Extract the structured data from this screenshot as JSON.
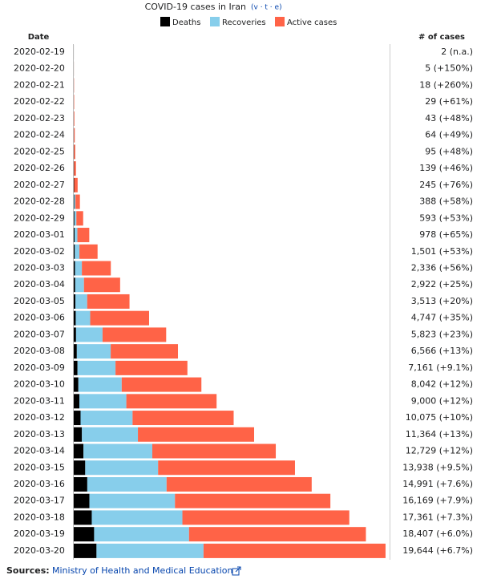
{
  "chart_data": {
    "type": "stacked-barh",
    "title": "COVID-19 cases in Iran",
    "nav_links": "(v · t · e)",
    "category_header": "Date",
    "case_header": "# of cases",
    "sources_label": "Sources:",
    "source": "Ministry of Health and Medical Education",
    "xlim": [
      0,
      20000
    ],
    "categories": [
      "2020-02-19",
      "2020-02-20",
      "2020-02-21",
      "2020-02-22",
      "2020-02-23",
      "2020-02-24",
      "2020-02-25",
      "2020-02-26",
      "2020-02-27",
      "2020-02-28",
      "2020-02-29",
      "2020-03-01",
      "2020-03-02",
      "2020-03-03",
      "2020-03-04",
      "2020-03-05",
      "2020-03-06",
      "2020-03-07",
      "2020-03-08",
      "2020-03-09",
      "2020-03-10",
      "2020-03-11",
      "2020-03-12",
      "2020-03-13",
      "2020-03-14",
      "2020-03-15",
      "2020-03-16",
      "2020-03-17",
      "2020-03-18",
      "2020-03-19",
      "2020-03-20"
    ],
    "series": [
      {
        "name": "Deaths",
        "color": "#000000",
        "values": [
          2,
          2,
          4,
          5,
          8,
          12,
          16,
          19,
          26,
          34,
          43,
          54,
          66,
          77,
          92,
          107,
          124,
          145,
          194,
          237,
          291,
          354,
          429,
          514,
          611,
          724,
          853,
          988,
          1135,
          1284,
          1433
        ]
      },
      {
        "name": "Recoveries",
        "color": "#87ceeb",
        "values": [
          0,
          0,
          0,
          0,
          0,
          0,
          0,
          0,
          0,
          73,
          123,
          175,
          291,
          435,
          552,
          739,
          913,
          1669,
          2134,
          2394,
          2731,
          2959,
          3276,
          3529,
          4339,
          4590,
          4996,
          5389,
          5710,
          5979,
          6745
        ]
      },
      {
        "name": "Active cases",
        "color": "#ff6347",
        "values": [
          0,
          3,
          14,
          24,
          35,
          52,
          79,
          120,
          219,
          281,
          427,
          749,
          1144,
          1824,
          2278,
          2667,
          3710,
          4009,
          4238,
          4530,
          5020,
          5687,
          6370,
          7321,
          7779,
          8624,
          9142,
          9792,
          10516,
          11144,
          11466
        ]
      }
    ],
    "case_labels": [
      "2 (n.a.)",
      "5 (+150%)",
      "18 (+260%)",
      "29 (+61%)",
      "43 (+48%)",
      "64 (+49%)",
      "95 (+48%)",
      "139 (+46%)",
      "245 (+76%)",
      "388 (+58%)",
      "593 (+53%)",
      "978 (+65%)",
      "1,501 (+53%)",
      "2,336 (+56%)",
      "2,922 (+25%)",
      "3,513 (+20%)",
      "4,747 (+35%)",
      "5,823 (+23%)",
      "6,566 (+13%)",
      "7,161 (+9.1%)",
      "8,042 (+12%)",
      "9,000 (+12%)",
      "10,075 (+10%)",
      "11,364 (+13%)",
      "12,729 (+12%)",
      "13,938 (+9.5%)",
      "14,991 (+7.6%)",
      "16,169 (+7.9%)",
      "17,361 (+7.3%)",
      "18,407 (+6.0%)",
      "19,644 (+6.7%)"
    ]
  }
}
